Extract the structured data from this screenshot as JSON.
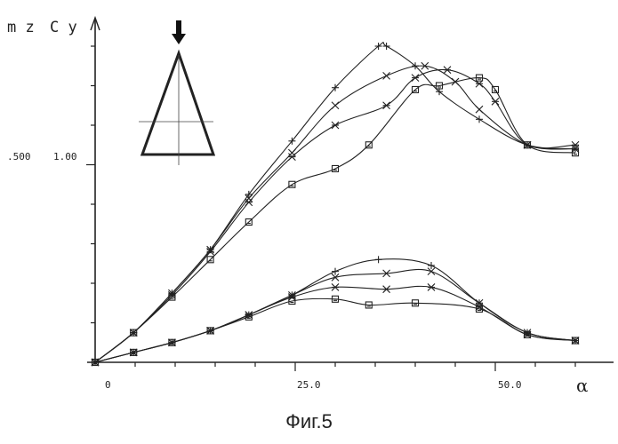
{
  "caption": "Фиг.5",
  "chart_data": {
    "type": "line",
    "y_axis_labels": {
      "left": "m z",
      "right": "C y"
    },
    "x_axis_label": "α",
    "x_ticks": [
      {
        "value": 0,
        "label": "0"
      },
      {
        "value": 25,
        "label": "25.0"
      },
      {
        "value": 50,
        "label": "50.0"
      }
    ],
    "y_tick_labels": [
      {
        "cy": 1.0,
        "mz_label": ".500",
        "cy_label": "1.00"
      }
    ],
    "xlim": [
      0,
      62
    ],
    "ylim": [
      0,
      1.67
    ],
    "series": [
      {
        "group": "Cy",
        "marker": "plus",
        "x": [
          0,
          4.8,
          9.6,
          14.4,
          19.2,
          24.6,
          30,
          35.4,
          36.4,
          40,
          43,
          48,
          54,
          60
        ],
        "y": [
          0,
          0.15,
          0.35,
          0.57,
          0.85,
          1.12,
          1.39,
          1.6,
          1.6,
          1.5,
          1.37,
          1.23,
          1.1,
          1.08
        ]
      },
      {
        "group": "Cy",
        "marker": "x",
        "x": [
          0,
          4.8,
          9.6,
          14.4,
          19.2,
          24.6,
          30,
          36.4,
          41.2,
          45,
          48,
          54,
          60
        ],
        "y": [
          0,
          0.15,
          0.35,
          0.57,
          0.83,
          1.06,
          1.3,
          1.45,
          1.5,
          1.42,
          1.28,
          1.1,
          1.08
        ]
      },
      {
        "group": "Cy",
        "marker": "asterisk",
        "x": [
          0,
          4.8,
          9.6,
          14.4,
          19.2,
          24.6,
          30,
          36.4,
          40,
          44,
          48,
          50,
          54,
          60
        ],
        "y": [
          0,
          0.15,
          0.34,
          0.56,
          0.81,
          1.04,
          1.2,
          1.3,
          1.44,
          1.48,
          1.41,
          1.32,
          1.1,
          1.1
        ]
      },
      {
        "group": "Cy",
        "marker": "square",
        "x": [
          0,
          4.8,
          9.6,
          14.4,
          19.2,
          24.6,
          30,
          34.2,
          40,
          43,
          48,
          50,
          54,
          60
        ],
        "y": [
          0,
          0.15,
          0.33,
          0.52,
          0.71,
          0.9,
          0.98,
          1.1,
          1.38,
          1.4,
          1.44,
          1.38,
          1.1,
          1.06
        ]
      },
      {
        "group": "mz",
        "marker": "plus",
        "x": [
          0,
          4.8,
          9.6,
          14.4,
          19.2,
          24.6,
          30,
          35.4,
          42,
          48,
          54,
          60
        ],
        "y": [
          0,
          0.05,
          0.1,
          0.16,
          0.24,
          0.34,
          0.46,
          0.52,
          0.49,
          0.3,
          0.15,
          0.11
        ]
      },
      {
        "group": "mz",
        "marker": "x",
        "x": [
          0,
          4.8,
          9.6,
          14.4,
          19.2,
          24.6,
          30,
          36.4,
          42,
          48,
          54,
          60
        ],
        "y": [
          0,
          0.05,
          0.1,
          0.16,
          0.24,
          0.34,
          0.43,
          0.45,
          0.46,
          0.3,
          0.15,
          0.11
        ]
      },
      {
        "group": "mz",
        "marker": "asterisk",
        "x": [
          0,
          4.8,
          9.6,
          14.4,
          19.2,
          24.6,
          30,
          36.4,
          42,
          48,
          54,
          60
        ],
        "y": [
          0,
          0.05,
          0.1,
          0.16,
          0.24,
          0.33,
          0.38,
          0.37,
          0.38,
          0.28,
          0.14,
          0.11
        ]
      },
      {
        "group": "mz",
        "marker": "square",
        "x": [
          0,
          4.8,
          9.6,
          14.4,
          19.2,
          24.6,
          30,
          34.2,
          40,
          48,
          54,
          60
        ],
        "y": [
          0,
          0.05,
          0.1,
          0.16,
          0.23,
          0.31,
          0.32,
          0.29,
          0.3,
          0.27,
          0.14,
          0.11
        ]
      }
    ]
  }
}
